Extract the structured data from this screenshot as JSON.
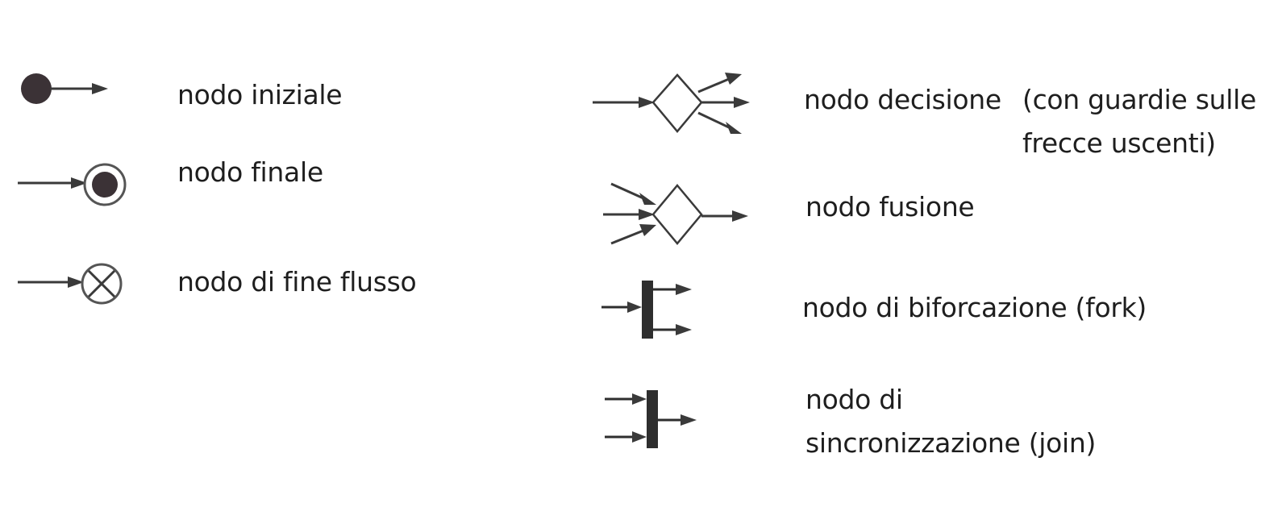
{
  "legend": {
    "initial_node": "nodo iniziale",
    "final_node": "nodo finale",
    "flow_final_node": "nodo di fine flusso",
    "decision_node": "nodo decisione",
    "decision_note_line1": "(con guardie sulle",
    "decision_note_line2": "frecce uscenti)",
    "merge_node": "nodo fusione",
    "fork_node": "nodo di biforcazione (fork)",
    "join_node_line1": "nodo di",
    "join_node_line2": "sincronizzazione (join)"
  }
}
